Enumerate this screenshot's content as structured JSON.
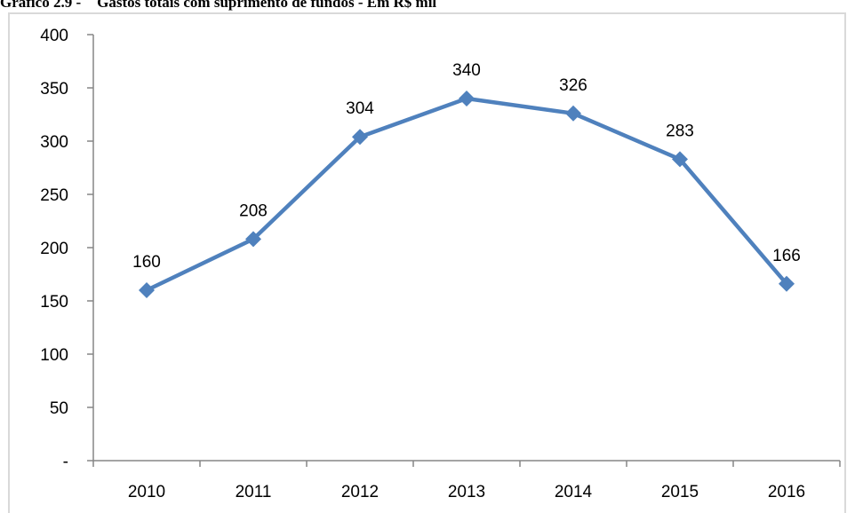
{
  "title": {
    "figure": "Gráfico 2.9 -",
    "text": "Gastos totais com suprimento de fundos - Em R$ mil"
  },
  "chart_data": {
    "type": "line",
    "categories": [
      "2010",
      "2011",
      "2012",
      "2013",
      "2014",
      "2015",
      "2016"
    ],
    "series": [
      {
        "name": "",
        "values": [
          160,
          208,
          304,
          340,
          326,
          283,
          166
        ],
        "color": "#4f81bd"
      }
    ],
    "y_tick_labels": [
      "-",
      "50",
      "100",
      "150",
      "200",
      "250",
      "300",
      "350",
      "400"
    ],
    "ylim": [
      0,
      400
    ],
    "xlabel": "",
    "ylabel": "",
    "marker": "diamond",
    "data_labels": true,
    "grid": false,
    "legend": "none"
  }
}
